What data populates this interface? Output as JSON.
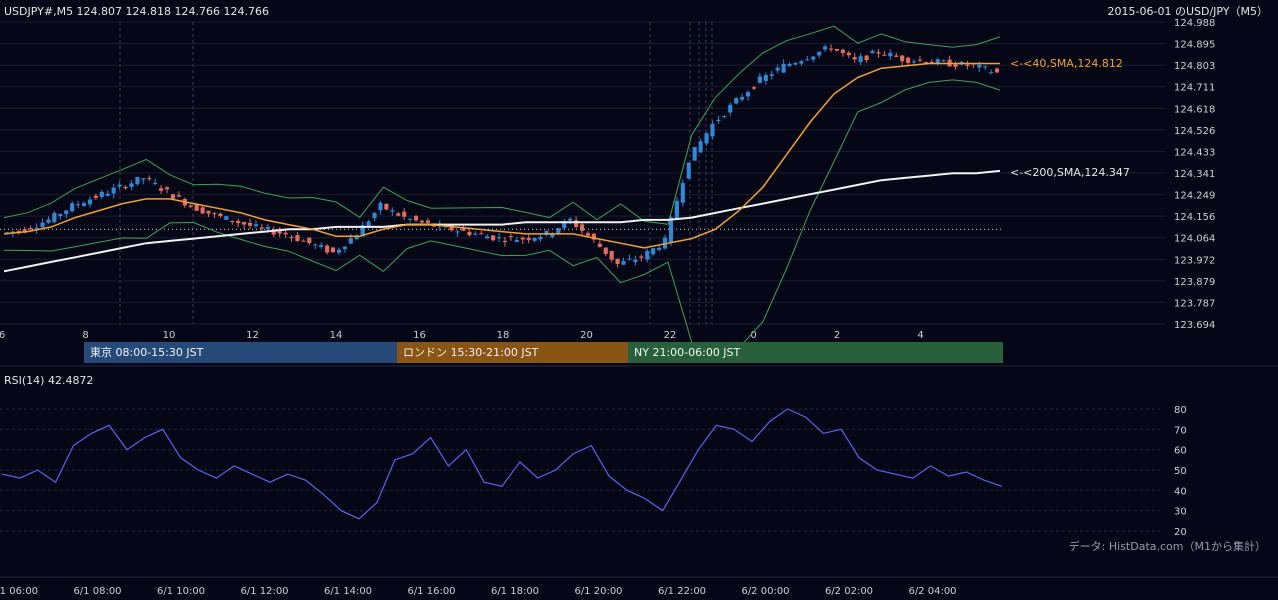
{
  "header": {
    "symbol_info": "USDJPY#,M5 124.807 124.818 124.766 124.766",
    "title_right": "2015-06-01 のUSD/JPY（M5）"
  },
  "sessions": [
    {
      "label": "東京 08:00-15:30 JST",
      "color": "#254a7a"
    },
    {
      "label": "ロンドン 15:30-21:00 JST",
      "color": "#8a5414"
    },
    {
      "label": "NY 21:00-06:00 JST",
      "color": "#27603a"
    }
  ],
  "sma_labels": {
    "sma40": "<-<40,SMA,124.812",
    "sma200": "<-<200,SMA,124.347"
  },
  "rsi": {
    "label": "RSI(14) 42.4872"
  },
  "source_note": "データ: HistData.com（M1から集計）",
  "colors": {
    "up": "#2f88d8",
    "down": "#e46c5c",
    "sma40": "#f5a030",
    "sma200": "#f2f2f2",
    "bollinger": "#3ea35a",
    "rsi": "#5a64f0"
  },
  "chart_data": [
    {
      "type": "line",
      "title": "",
      "y_ticks": [
        "124.988",
        "124.895",
        "124.803",
        "124.711",
        "124.618",
        "124.526",
        "124.433",
        "124.341",
        "124.249",
        "124.156",
        "124.064",
        "123.972",
        "123.879",
        "123.787",
        "123.694"
      ],
      "x_ticks": [
        "6",
        "8",
        "10",
        "12",
        "14",
        "16",
        "18",
        "20",
        "22",
        "0",
        "2",
        "4"
      ],
      "ylim": [
        123.694,
        124.988
      ],
      "ref_line": 124.1,
      "series": [
        {
          "name": "Price",
          "values": [
            124.08,
            124.1,
            124.14,
            124.2,
            124.24,
            124.28,
            124.32,
            124.26,
            124.2,
            124.16,
            124.13,
            124.1,
            124.08,
            124.04,
            124.0,
            124.08,
            124.2,
            124.15,
            124.12,
            124.1,
            124.08,
            124.06,
            124.06,
            124.08,
            124.14,
            124.05,
            123.95,
            123.98,
            124.05,
            124.4,
            124.55,
            124.65,
            124.74,
            124.8,
            124.84,
            124.88,
            124.82,
            124.86,
            124.83,
            124.82,
            124.81,
            124.8,
            124.77
          ]
        },
        {
          "name": "SMA40",
          "values": [
            124.08,
            124.09,
            124.11,
            124.15,
            124.18,
            124.21,
            124.23,
            124.23,
            124.21,
            124.19,
            124.17,
            124.14,
            124.12,
            124.1,
            124.07,
            124.07,
            124.1,
            124.12,
            124.12,
            124.11,
            124.1,
            124.09,
            124.08,
            124.08,
            124.08,
            124.06,
            124.04,
            124.02,
            124.04,
            124.06,
            124.1,
            124.18,
            124.28,
            124.42,
            124.56,
            124.68,
            124.75,
            124.79,
            124.8,
            124.81,
            124.81,
            124.81,
            124.81
          ]
        },
        {
          "name": "SMA200",
          "values": [
            123.92,
            123.94,
            123.96,
            123.98,
            124.0,
            124.02,
            124.04,
            124.05,
            124.06,
            124.07,
            124.08,
            124.09,
            124.1,
            124.1,
            124.11,
            124.11,
            124.11,
            124.12,
            124.12,
            124.12,
            124.12,
            124.12,
            124.13,
            124.13,
            124.13,
            124.13,
            124.13,
            124.14,
            124.14,
            124.15,
            124.17,
            124.19,
            124.21,
            124.23,
            124.25,
            124.27,
            124.29,
            124.31,
            124.32,
            124.33,
            124.34,
            124.34,
            124.35
          ]
        }
      ]
    },
    {
      "type": "line",
      "title": "",
      "ylim": [
        20,
        80
      ],
      "y_ticks": [
        "80",
        "70",
        "60",
        "50",
        "40",
        "30",
        "20"
      ],
      "x_ticks": [
        "6/1 06:00",
        "6/1 08:00",
        "6/1 10:00",
        "6/1 12:00",
        "6/1 14:00",
        "6/1 16:00",
        "6/1 18:00",
        "6/1 20:00",
        "6/1 22:00",
        "6/2 00:00",
        "6/2 02:00",
        "6/2 04:00"
      ],
      "series": [
        {
          "name": "RSI",
          "values": [
            48,
            46,
            50,
            44,
            62,
            68,
            72,
            60,
            66,
            70,
            56,
            50,
            46,
            52,
            48,
            44,
            48,
            45,
            38,
            30,
            26,
            34,
            55,
            58,
            66,
            52,
            60,
            44,
            42,
            54,
            46,
            50,
            58,
            62,
            47,
            40,
            36,
            30,
            45,
            60,
            72,
            70,
            64,
            74,
            80,
            76,
            68,
            70,
            56,
            50,
            48,
            46,
            52,
            47,
            49,
            45,
            42
          ]
        }
      ]
    }
  ]
}
